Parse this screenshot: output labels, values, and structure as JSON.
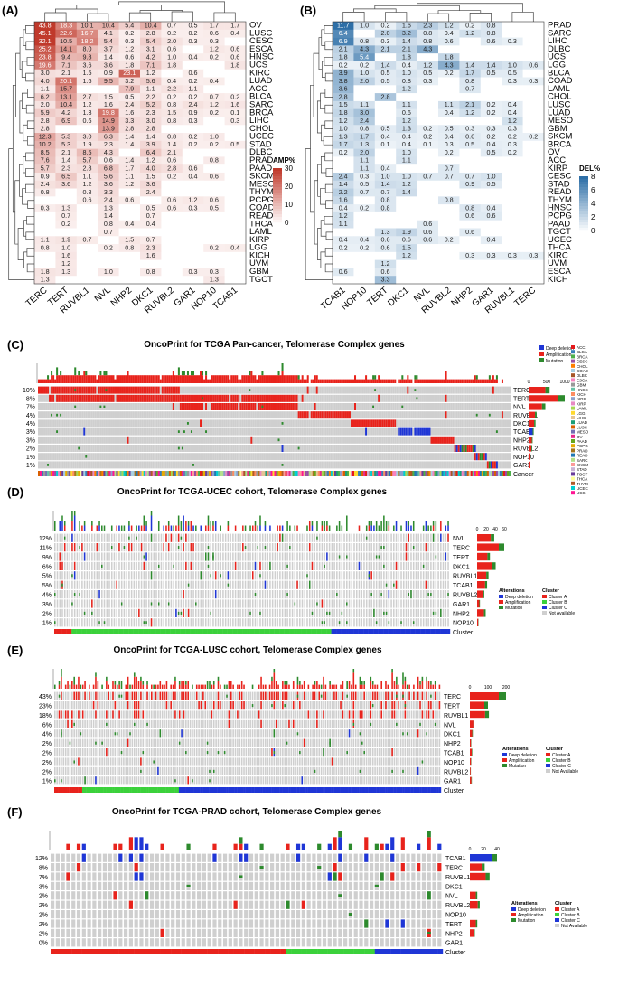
{
  "panels": {
    "A": {
      "label": "(A)",
      "legend_title": "AMP%",
      "legend_ticks": [
        30,
        20,
        10,
        0
      ],
      "genes": [
        "TERC",
        "TERT",
        "RUVBL1",
        "NVL",
        "NHP2",
        "DKC1",
        "RUVBL2",
        "GAR1",
        "NOP10",
        "TCAB1"
      ],
      "cancers": [
        "OV",
        "LUSC",
        "CESC",
        "ESCA",
        "HNSC",
        "UCS",
        "KIRC",
        "LUAD",
        "ACC",
        "BLCA",
        "SARC",
        "BRCA",
        "LIHC",
        "CHOL",
        "UCEC",
        "STAD",
        "DLBC",
        "PRAD",
        "PAAD",
        "SKCM",
        "MESO",
        "THYM",
        "PCPG",
        "COAD",
        "READ",
        "THCA",
        "LAML",
        "KIRP",
        "LGG",
        "KICH",
        "UVM",
        "GBM",
        "TGCT"
      ],
      "values": [
        [
          "43.8",
          "18.3",
          "10.1",
          "10.4",
          "5.4",
          "10.4",
          "0.7",
          "0.5",
          "1.7",
          "1.7"
        ],
        [
          "45.1",
          "22.6",
          "16.7",
          "4.1",
          "0.2",
          "2.8",
          "0.2",
          "0.2",
          "0.6",
          "0.4"
        ],
        [
          "32.1",
          "10.5",
          "18.2",
          "5.4",
          "0.3",
          "5.4",
          "2.0",
          "0.3",
          "0.3",
          ""
        ],
        [
          "25.2",
          "14.1",
          "8.0",
          "3.7",
          "1.2",
          "3.1",
          "0.6",
          "",
          "1.2",
          "0.6"
        ],
        [
          "23.8",
          "9.4",
          "9.8",
          "1.4",
          "0.6",
          "4.2",
          "1.0",
          "0.4",
          "0.2",
          "0.6"
        ],
        [
          "19.6",
          "7.1",
          "3.6",
          "3.6",
          "1.8",
          "7.1",
          "1.8",
          "",
          "",
          "1.8"
        ],
        [
          "3.0",
          "2.1",
          "1.5",
          "0.9",
          "23.1",
          "1.2",
          "",
          "0.6",
          "",
          ""
        ],
        [
          "4.0",
          "20.1",
          "1.6",
          "9.5",
          "3.2",
          "5.6",
          "0.4",
          "0.2",
          "0.4",
          ""
        ],
        [
          "1.1",
          "15.7",
          "",
          "",
          "7.9",
          "1.1",
          "2.2",
          "1.1",
          "",
          ""
        ],
        [
          "6.2",
          "13.1",
          "2.7",
          "1.5",
          "0.5",
          "2.2",
          "0.2",
          "0.2",
          "0.7",
          "0.2"
        ],
        [
          "2.0",
          "10.4",
          "1.2",
          "1.6",
          "2.4",
          "5.2",
          "0.8",
          "2.4",
          "1.2",
          "1.6"
        ],
        [
          "5.9",
          "4.2",
          "1.3",
          "19.8",
          "1.6",
          "2.3",
          "1.5",
          "0.9",
          "0.2",
          "0.1"
        ],
        [
          "2.8",
          "6.9",
          "0.6",
          "14.9",
          "3.3",
          "3.0",
          "0.8",
          "0.3",
          "",
          "0.3"
        ],
        [
          "2.8",
          "",
          "",
          "13.9",
          "2.8",
          "2.8",
          "",
          "",
          "",
          ""
        ],
        [
          "12.3",
          "5.3",
          "3.0",
          "6.3",
          "1.4",
          "1.4",
          "0.8",
          "0.2",
          "1.0",
          ""
        ],
        [
          "10.2",
          "5.3",
          "1.9",
          "2.3",
          "1.4",
          "3.9",
          "1.4",
          "0.2",
          "0.2",
          "0.5"
        ],
        [
          "8.5",
          "2.1",
          "8.5",
          "4.3",
          "",
          "6.4",
          "2.1",
          "",
          "",
          ""
        ],
        [
          "7.6",
          "1.4",
          "5.7",
          "0.6",
          "1.4",
          "1.2",
          "0.6",
          "",
          "0.8",
          ""
        ],
        [
          "5.7",
          "2.3",
          "2.8",
          "6.8",
          "1.7",
          "4.0",
          "2.8",
          "0.6",
          "",
          ""
        ],
        [
          "0.9",
          "6.5",
          "1.1",
          "5.6",
          "1.1",
          "1.5",
          "0.2",
          "0.4",
          "0.6",
          ""
        ],
        [
          "2.4",
          "3.6",
          "1.2",
          "3.6",
          "1.2",
          "3.6",
          "",
          "",
          "",
          ""
        ],
        [
          "0.8",
          "",
          "0.8",
          "3.3",
          "",
          "2.4",
          "",
          "",
          "",
          ""
        ],
        [
          "",
          "",
          "0.6",
          "2.4",
          "0.6",
          "",
          "0.6",
          "1.2",
          "0.6",
          ""
        ],
        [
          "0.3",
          "1.3",
          "",
          "1.3",
          "",
          "0.5",
          "0.6",
          "0.3",
          "0.5",
          ""
        ],
        [
          "",
          "0.7",
          "",
          "1.4",
          "",
          "0.7",
          "",
          "",
          "",
          ""
        ],
        [
          "",
          "0.2",
          "",
          "0.8",
          "0.4",
          "0.4",
          "",
          "",
          "",
          ""
        ],
        [
          "",
          "",
          "",
          "0.7",
          "",
          "",
          "",
          "",
          "",
          ""
        ],
        [
          "1.1",
          "1.9",
          "0.7",
          "",
          "1.5",
          "0.7",
          "",
          "",
          "",
          ""
        ],
        [
          "0.8",
          "1.0",
          "",
          "0.2",
          "0.8",
          "2.3",
          "",
          "",
          "0.2",
          "0.4"
        ],
        [
          "",
          "1.6",
          "",
          "",
          "",
          "1.6",
          "",
          "",
          "",
          ""
        ],
        [
          "",
          "1.2",
          "",
          "",
          "",
          "",
          "",
          "",
          "",
          ""
        ],
        [
          "1.8",
          "1.3",
          "",
          "1.0",
          "",
          "0.8",
          "",
          "0.3",
          "0.3",
          ""
        ],
        [
          "1.3",
          "",
          "",
          "",
          "",
          "",
          "",
          "",
          "1.3",
          ""
        ]
      ]
    },
    "B": {
      "label": "(B)",
      "legend_title": "DEL%",
      "legend_ticks": [
        8,
        6,
        4,
        2,
        0
      ],
      "genes": [
        "TCAB1",
        "NOP10",
        "TERT",
        "DKC1",
        "NVL",
        "RUVBL2",
        "NHP2",
        "GAR1",
        "RUVBL1",
        "TERC"
      ],
      "cancers": [
        "PRAD",
        "SARC",
        "LIHC",
        "DLBC",
        "UCS",
        "LGG",
        "BLCA",
        "COAD",
        "LAML",
        "CHOL",
        "LUSC",
        "LUAD",
        "MESO",
        "GBM",
        "SKCM",
        "BRCA",
        "OV",
        "ACC",
        "KIRP",
        "CESC",
        "STAD",
        "READ",
        "THYM",
        "HNSC",
        "PCPG",
        "PAAD",
        "TGCT",
        "UCEC",
        "THCA",
        "KIRC",
        "UVM",
        "ESCA",
        "KICH"
      ],
      "values": [
        [
          "11.7",
          "1.0",
          "0.2",
          "1.6",
          "2.3",
          "1.2",
          "0.2",
          "0.8",
          "",
          ""
        ],
        [
          "6.4",
          "",
          "2.0",
          "3.2",
          "0.8",
          "0.4",
          "1.2",
          "0.8",
          "",
          ""
        ],
        [
          "6.9",
          "0.8",
          "0.3",
          "1.4",
          "0.8",
          "0.6",
          "",
          "0.6",
          "0.3",
          ""
        ],
        [
          "2.1",
          "4.3",
          "2.1",
          "2.1",
          "4.3",
          "",
          "",
          "",
          "",
          ""
        ],
        [
          "1.8",
          "5.4",
          "",
          "1.8",
          "",
          "1.8",
          "",
          "",
          "",
          ""
        ],
        [
          "0.2",
          "0.2",
          "1.4",
          "0.4",
          "1.2",
          "4.3",
          "1.4",
          "1.4",
          "1.0",
          "0.6"
        ],
        [
          "3.9",
          "1.0",
          "0.5",
          "1.0",
          "0.5",
          "0.2",
          "1.7",
          "0.5",
          "0.5",
          ""
        ],
        [
          "3.8",
          "2.0",
          "0.5",
          "0.8",
          "0.3",
          "",
          "0.8",
          "",
          "0.3",
          "0.3"
        ],
        [
          "3.6",
          "",
          "",
          "1.2",
          "",
          "",
          "0.7",
          "",
          "",
          ""
        ],
        [
          "2.8",
          "",
          "2.8",
          "",
          "",
          "",
          "",
          "",
          "",
          ""
        ],
        [
          "1.5",
          "1.1",
          "",
          "1.1",
          "",
          "1.1",
          "2.1",
          "0.2",
          "0.4",
          ""
        ],
        [
          "1.8",
          "3.0",
          "",
          "0.6",
          "",
          "0.4",
          "1.2",
          "0.2",
          "0.4",
          ""
        ],
        [
          "1.2",
          "2.4",
          "",
          "1.2",
          "",
          "",
          "",
          "",
          "1.2",
          ""
        ],
        [
          "1.0",
          "0.8",
          "0.5",
          "1.3",
          "0.2",
          "0.5",
          "0.3",
          "0.3",
          "0.3",
          ""
        ],
        [
          "1.3",
          "1.7",
          "0.4",
          "0.4",
          "0.2",
          "0.4",
          "0.6",
          "0.2",
          "0.2",
          "0.2"
        ],
        [
          "1.7",
          "1.3",
          "0.1",
          "0.4",
          "0.1",
          "0.3",
          "0.5",
          "0.4",
          "0.3",
          ""
        ],
        [
          "0.2",
          "2.0",
          "",
          "1.0",
          "",
          "0.2",
          "",
          "0.5",
          "0.2",
          ""
        ],
        [
          "",
          "1.1",
          "",
          "1.1",
          "",
          "",
          "",
          "",
          "",
          ""
        ],
        [
          "",
          "1.1",
          "0.4",
          "",
          "",
          "0.7",
          "",
          "",
          "",
          ""
        ],
        [
          "2.4",
          "0.3",
          "1.0",
          "1.0",
          "0.7",
          "0.7",
          "0.7",
          "1.0",
          "",
          ""
        ],
        [
          "1.4",
          "0.5",
          "1.4",
          "1.2",
          "",
          "",
          "0.9",
          "0.5",
          "",
          ""
        ],
        [
          "2.2",
          "0.7",
          "0.7",
          "1.4",
          "",
          "",
          "",
          "",
          "",
          ""
        ],
        [
          "1.6",
          "",
          "0.8",
          "",
          "",
          "0.8",
          "",
          "",
          "",
          ""
        ],
        [
          "0.4",
          "0.2",
          "0.8",
          "",
          "",
          "",
          "0.8",
          "0.4",
          "",
          ""
        ],
        [
          "1.2",
          "",
          "",
          "",
          "",
          "",
          "0.6",
          "0.6",
          "",
          ""
        ],
        [
          "1.1",
          "",
          "",
          "",
          "0.6",
          "",
          "",
          "",
          "",
          ""
        ],
        [
          "",
          "",
          "1.3",
          "1.9",
          "0.6",
          "",
          "0.6",
          "",
          "",
          ""
        ],
        [
          "0.4",
          "0.4",
          "0.6",
          "0.6",
          "0.6",
          "0.2",
          "",
          "0.4",
          "",
          ""
        ],
        [
          "0.2",
          "0.2",
          "0.6",
          "1.5",
          "",
          "",
          "",
          "",
          "",
          ""
        ],
        [
          "",
          "",
          "",
          "1.2",
          "",
          "",
          "0.3",
          "0.3",
          "0.3",
          "0.3"
        ],
        [
          "",
          "",
          "1.2",
          "",
          "",
          "",
          "",
          "",
          "",
          ""
        ],
        [
          "0.6",
          "",
          "0.6",
          "",
          "",
          "",
          "",
          "",
          "",
          ""
        ],
        [
          "",
          "",
          "3.3",
          "",
          "",
          "",
          "",
          "",
          "",
          ""
        ]
      ]
    },
    "C": {
      "label": "(C)",
      "title": "OncoPrint for TCGA Pan-cancer, Telomerase Complex genes",
      "genes": [
        "TERC",
        "TERT",
        "NVL",
        "RUVBL1",
        "DKC1",
        "TCAB1",
        "NHP2",
        "RUVBL2",
        "NOP10",
        "GAR1"
      ],
      "pcts": [
        "10%",
        "8%",
        "7%",
        "4%",
        "4%",
        "3%",
        "3%",
        "2%",
        "1%",
        "1%"
      ],
      "bar_ticks": [
        "0",
        "500",
        "1000"
      ],
      "annotation_label": "Cancer",
      "legend_alterations": [
        "Deep deletion",
        "Amplification",
        "Mutation"
      ],
      "legend_cancers": [
        "ACC",
        "BLCA",
        "BRCA",
        "CESC",
        "CHOL",
        "COAD",
        "DLBC",
        "ESCA",
        "GBM",
        "HNSC",
        "KICH",
        "KIRC",
        "KIRP",
        "LAML",
        "LGG",
        "LIHC",
        "LUAD",
        "LUSC",
        "MESO",
        "OV",
        "PAAD",
        "PCPG",
        "PRAD",
        "READ",
        "SARC",
        "SKCM",
        "STAD",
        "TGCT",
        "THCA",
        "THYM",
        "UCEC",
        "UCS"
      ]
    },
    "D": {
      "label": "(D)",
      "title": "OncoPrint for TCGA-UCEC cohort, Telomerase Complex genes",
      "genes": [
        "NVL",
        "TERC",
        "TERT",
        "DKC1",
        "RUVBL1",
        "TCAB1",
        "RUVBL2",
        "GAR1",
        "NHP2",
        "NOP10"
      ],
      "pcts": [
        "12%",
        "11%",
        "9%",
        "6%",
        "5%",
        "5%",
        "4%",
        "3%",
        "2%",
        "1%"
      ],
      "bar_ticks": [
        "0",
        "20",
        "40",
        "60"
      ],
      "annotation_label": "Cluster"
    },
    "E": {
      "label": "(E)",
      "title": "OncoPrint for TCGA-LUSC cohort, Telomerase Complex genes",
      "genes": [
        "TERC",
        "TERT",
        "RUVBL1",
        "NVL",
        "DKC1",
        "NHP2",
        "TCAB1",
        "NOP10",
        "RUVBL2",
        "GAR1"
      ],
      "pcts": [
        "43%",
        "23%",
        "18%",
        "6%",
        "4%",
        "2%",
        "2%",
        "2%",
        "2%",
        "1%"
      ],
      "bar_ticks": [
        "0",
        "100",
        "200"
      ],
      "annotation_label": "Cluster"
    },
    "F": {
      "label": "(F)",
      "title": "OncoPrint for TCGA-PRAD cohort, Telomerase Complex genes",
      "genes": [
        "TCAB1",
        "TERC",
        "RUVBL1",
        "DKC1",
        "NVL",
        "RUVBL2",
        "NOP10",
        "TERT",
        "NHP2",
        "GAR1"
      ],
      "pcts": [
        "12%",
        "8%",
        "7%",
        "3%",
        "2%",
        "2%",
        "2%",
        "2%",
        "2%",
        "0%"
      ],
      "bar_ticks": [
        "0",
        "20",
        "40"
      ],
      "annotation_label": "Cluster"
    }
  },
  "legend_common": {
    "alterations_title": "Alterations",
    "alterations": [
      "Deep deletion",
      "Amplification",
      "Mutation"
    ],
    "cluster_title": "Cluster",
    "clusters": [
      "Cluster A",
      "Cluster B",
      "Cluster C",
      "Not Available"
    ]
  },
  "colors": {
    "amp": "#e8231c",
    "del": "#1f36d6",
    "mut": "#2d8a2d",
    "na": "#cfcfcf",
    "clusterA": "#e8231c",
    "clusterB": "#3bd13b",
    "clusterC": "#1f36d6",
    "heatA": "#c0392b",
    "heatB": "#2e6fa7"
  },
  "chart_data": [
    {
      "type": "heatmap",
      "panel": "A",
      "legend_title": "AMP%",
      "note": "values in panels.A.values"
    },
    {
      "type": "heatmap",
      "panel": "B",
      "legend_title": "DEL%",
      "note": "values in panels.B.values"
    },
    {
      "type": "table",
      "panel": "C",
      "title": "OncoPrint for TCGA Pan-cancer, Telomerase Complex genes"
    },
    {
      "type": "table",
      "panel": "D",
      "title": "OncoPrint for TCGA-UCEC cohort, Telomerase Complex genes"
    },
    {
      "type": "table",
      "panel": "E",
      "title": "OncoPrint for TCGA-LUSC cohort, Telomerase Complex genes"
    },
    {
      "type": "table",
      "panel": "F",
      "title": "OncoPrint for TCGA-PRAD cohort, Telomerase Complex genes"
    }
  ]
}
